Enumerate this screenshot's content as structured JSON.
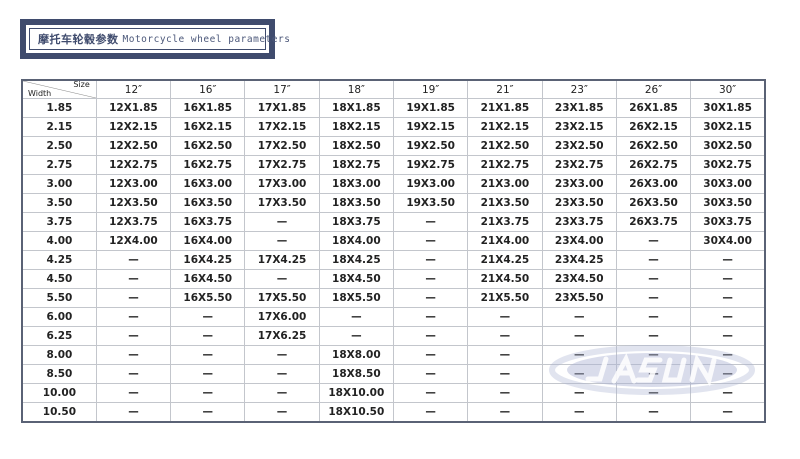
{
  "title": {
    "cn": "摩托车轮毂参数",
    "en": "Motorcycle wheel  parameters"
  },
  "table": {
    "corner_size": "Size",
    "corner_width": "Width",
    "headers": [
      "12″",
      "16″",
      "17″",
      "18″",
      "19″",
      "21″",
      "23″",
      "26″",
      "30″"
    ],
    "rows": [
      [
        "1.85",
        "12X1.85",
        "16X1.85",
        "17X1.85",
        "18X1.85",
        "19X1.85",
        "21X1.85",
        "23X1.85",
        "26X1.85",
        "30X1.85"
      ],
      [
        "2.15",
        "12X2.15",
        "16X2.15",
        "17X2.15",
        "18X2.15",
        "19X2.15",
        "21X2.15",
        "23X2.15",
        "26X2.15",
        "30X2.15"
      ],
      [
        "2.50",
        "12X2.50",
        "16X2.50",
        "17X2.50",
        "18X2.50",
        "19X2.50",
        "21X2.50",
        "23X2.50",
        "26X2.50",
        "30X2.50"
      ],
      [
        "2.75",
        "12X2.75",
        "16X2.75",
        "17X2.75",
        "18X2.75",
        "19X2.75",
        "21X2.75",
        "23X2.75",
        "26X2.75",
        "30X2.75"
      ],
      [
        "3.00",
        "12X3.00",
        "16X3.00",
        "17X3.00",
        "18X3.00",
        "19X3.00",
        "21X3.00",
        "23X3.00",
        "26X3.00",
        "30X3.00"
      ],
      [
        "3.50",
        "12X3.50",
        "16X3.50",
        "17X3.50",
        "18X3.50",
        "19X3.50",
        "21X3.50",
        "23X3.50",
        "26X3.50",
        "30X3.50"
      ],
      [
        "3.75",
        "12X3.75",
        "16X3.75",
        "—",
        "18X3.75",
        "—",
        "21X3.75",
        "23X3.75",
        "26X3.75",
        "30X3.75"
      ],
      [
        "4.00",
        "12X4.00",
        "16X4.00",
        "—",
        "18X4.00",
        "—",
        "21X4.00",
        "23X4.00",
        "—",
        "30X4.00"
      ],
      [
        "4.25",
        "—",
        "16X4.25",
        "17X4.25",
        "18X4.25",
        "—",
        "21X4.25",
        "23X4.25",
        "—",
        "—"
      ],
      [
        "4.50",
        "—",
        "16X4.50",
        "—",
        "18X4.50",
        "—",
        "21X4.50",
        "23X4.50",
        "—",
        "—"
      ],
      [
        "5.50",
        "—",
        "16X5.50",
        "17X5.50",
        "18X5.50",
        "—",
        "21X5.50",
        "23X5.50",
        "—",
        "—"
      ],
      [
        "6.00",
        "—",
        "—",
        "17X6.00",
        "—",
        "—",
        "—",
        "—",
        "—",
        "—"
      ],
      [
        "6.25",
        "—",
        "—",
        "17X6.25",
        "—",
        "—",
        "—",
        "—",
        "—",
        "—"
      ],
      [
        "8.00",
        "—",
        "—",
        "—",
        "18X8.00",
        "—",
        "—",
        "—",
        "—",
        "—"
      ],
      [
        "8.50",
        "—",
        "—",
        "—",
        "18X8.50",
        "—",
        "—",
        "—",
        "—",
        "—"
      ],
      [
        "10.00",
        "—",
        "—",
        "—",
        "18X10.00",
        "—",
        "—",
        "—",
        "—",
        "—"
      ],
      [
        "10.50",
        "—",
        "—",
        "—",
        "18X10.50",
        "—",
        "—",
        "—",
        "—",
        "—"
      ]
    ]
  },
  "watermark": {
    "text": "JASUN"
  },
  "colors": {
    "navy": "#3f4b6d"
  }
}
